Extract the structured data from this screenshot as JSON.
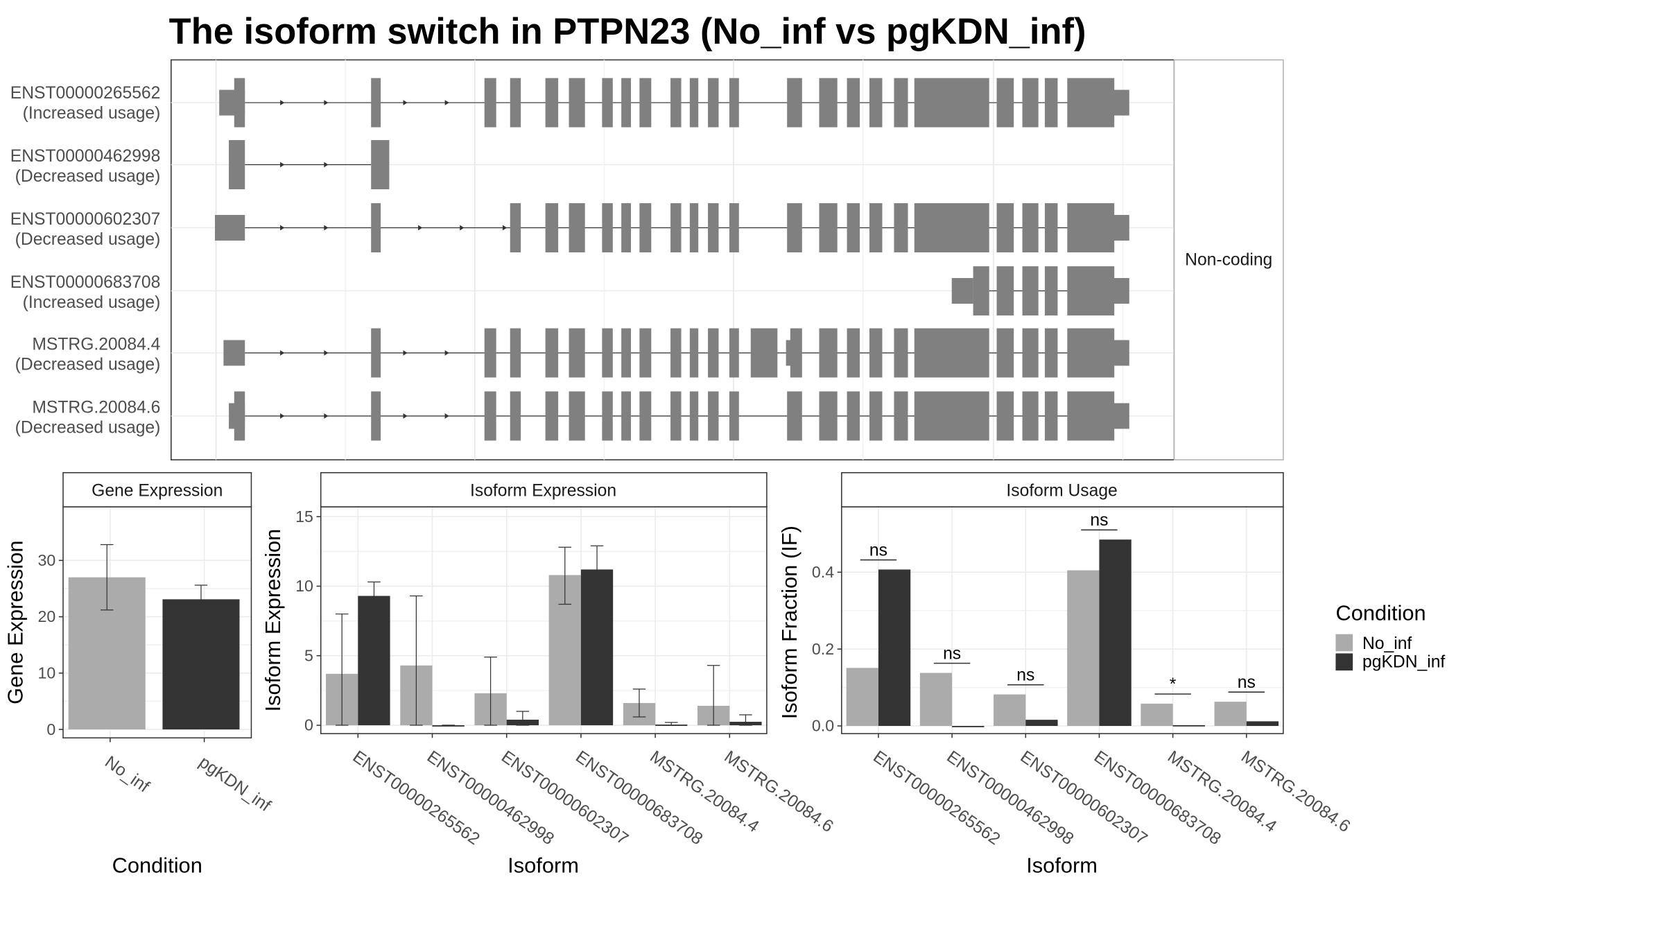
{
  "title": "The isoform switch in PTPN23 (No_inf vs pgKDN_inf)",
  "colors": {
    "no_inf": "#ababab",
    "pgkdn_inf": "#333333",
    "exon": "#808080",
    "panel_border": "#333333",
    "strip_bg": "#ffffff",
    "grid": "#ebebeb"
  },
  "structure": {
    "facet_label": "Non-coding",
    "isoforms": [
      {
        "name": "ENST00000265562",
        "usage": "(Increased usage)"
      },
      {
        "name": "ENST00000462998",
        "usage": "(Decreased usage)"
      },
      {
        "name": "ENST00000602307",
        "usage": "(Decreased usage)"
      },
      {
        "name": "ENST00000683708",
        "usage": "(Increased usage)"
      },
      {
        "name": "MSTRG.20084.4",
        "usage": "(Decreased usage)"
      },
      {
        "name": "MSTRG.20084.6",
        "usage": "(Decreased usage)"
      }
    ]
  },
  "legend": {
    "title": "Condition",
    "items": [
      "No_inf",
      "pgKDN_inf"
    ]
  },
  "chart_data": [
    {
      "type": "bar",
      "title": "Gene Expression",
      "xlabel": "Condition",
      "ylabel": "Gene Expression",
      "categories": [
        "No_inf",
        "pgKDN_inf"
      ],
      "values": [
        27.0,
        23.1
      ],
      "errors": [
        [
          21.2,
          32.8
        ],
        [
          20.6,
          25.6
        ]
      ],
      "ylim": [
        -1.5,
        39.5
      ],
      "yticks": [
        0,
        10,
        20,
        30
      ],
      "grid": true
    },
    {
      "type": "bar",
      "title": "Isoform Expression",
      "xlabel": "Isoform",
      "ylabel": "Isoform Expression",
      "categories": [
        "ENST00000265562",
        "ENST00000462998",
        "ENST00000602307",
        "ENST00000683708",
        "MSTRG.20084.4",
        "MSTRG.20084.6"
      ],
      "series": [
        {
          "name": "No_inf",
          "values": [
            3.7,
            4.3,
            2.3,
            10.8,
            1.6,
            1.4
          ],
          "errors": [
            [
              0,
              8.0
            ],
            [
              0,
              9.3
            ],
            [
              0,
              4.9
            ],
            [
              8.7,
              12.8
            ],
            [
              0.6,
              2.6
            ],
            [
              0,
              4.3
            ]
          ]
        },
        {
          "name": "pgKDN_inf",
          "values": [
            9.3,
            0,
            0.4,
            11.2,
            0.05,
            0.25
          ],
          "errors": [
            [
              8.3,
              10.3
            ],
            [
              0,
              0
            ],
            [
              0,
              1.0
            ],
            [
              9.6,
              12.9
            ],
            [
              0,
              0.2
            ],
            [
              0,
              0.75
            ]
          ]
        }
      ],
      "ylim": [
        -0.6,
        15.7
      ],
      "yticks": [
        0,
        5,
        10,
        15
      ],
      "grid": true
    },
    {
      "type": "bar",
      "title": "Isoform Usage",
      "xlabel": "Isoform",
      "ylabel": "Isoform Fraction (IF)",
      "categories": [
        "ENST00000265562",
        "ENST00000462998",
        "ENST00000602307",
        "ENST00000683708",
        "MSTRG.20084.4",
        "MSTRG.20084.6"
      ],
      "series": [
        {
          "name": "No_inf",
          "values": [
            0.151,
            0.138,
            0.082,
            0.405,
            0.058,
            0.063
          ]
        },
        {
          "name": "pgKDN_inf",
          "values": [
            0.407,
            0.0,
            0.016,
            0.485,
            0.002,
            0.012
          ]
        }
      ],
      "significance": [
        "ns",
        "ns",
        "ns",
        "ns",
        "*",
        "ns"
      ],
      "ylim": [
        -0.02,
        0.57
      ],
      "yticks": [
        0.0,
        0.2,
        0.4
      ],
      "grid": true
    }
  ]
}
